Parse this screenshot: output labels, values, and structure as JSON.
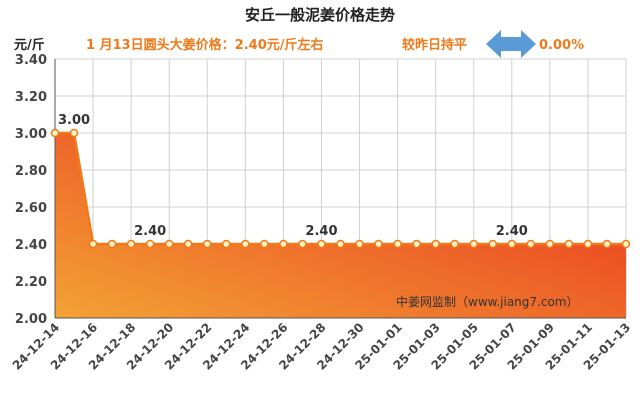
{
  "header": {
    "title": "安丘一般泥姜价格走势",
    "unit": "元/斤",
    "price_text": "1 月13日圆头大姜价格：2.40元/斤左右",
    "compare_text": "较昨日持平",
    "change_text": "0.00%"
  },
  "watermark": "中姜网监制（www.jiang7.com）",
  "colors": {
    "line": "#f07a1a",
    "fill_top": "#e82a1c",
    "fill_bottom": "#f3a235",
    "arrow": "#5b9bd5",
    "grid": "#d0d0d0",
    "marker_fill": "#fff3c4"
  },
  "chart_data": {
    "type": "area",
    "title": "安丘一般泥姜价格走势",
    "ylabel": "元/斤",
    "ylim": [
      2.0,
      3.4
    ],
    "yticks": [
      "2.00",
      "2.20",
      "2.40",
      "2.60",
      "2.80",
      "3.00",
      "3.20",
      "3.40"
    ],
    "x": [
      "24-12-14",
      "24-12-15",
      "24-12-16",
      "24-12-17",
      "24-12-18",
      "24-12-19",
      "24-12-20",
      "24-12-21",
      "24-12-22",
      "24-12-23",
      "24-12-24",
      "24-12-25",
      "24-12-26",
      "24-12-27",
      "24-12-28",
      "24-12-29",
      "24-12-30",
      "24-12-31",
      "25-01-01",
      "25-01-02",
      "25-01-03",
      "25-01-04",
      "25-01-05",
      "25-01-06",
      "25-01-07",
      "25-01-08",
      "25-01-09",
      "25-01-10",
      "25-01-11",
      "25-01-12",
      "25-01-13"
    ],
    "xtick_labels": [
      "24-12-14",
      "24-12-16",
      "24-12-18",
      "24-12-20",
      "24-12-22",
      "24-12-24",
      "24-12-26",
      "24-12-28",
      "24-12-30",
      "25-01-01",
      "25-01-03",
      "25-01-05",
      "25-01-07",
      "25-01-09",
      "25-01-11",
      "25-01-13"
    ],
    "series": [
      {
        "values": [
          3.0,
          3.0,
          2.4,
          2.4,
          2.4,
          2.4,
          2.4,
          2.4,
          2.4,
          2.4,
          2.4,
          2.4,
          2.4,
          2.4,
          2.4,
          2.4,
          2.4,
          2.4,
          2.4,
          2.4,
          2.4,
          2.4,
          2.4,
          2.4,
          2.4,
          2.4,
          2.4,
          2.4,
          2.4,
          2.4,
          2.4
        ]
      }
    ],
    "data_labels": [
      {
        "x": "24-12-15",
        "value": 3.0,
        "text": "3.00"
      },
      {
        "x": "24-12-19",
        "value": 2.4,
        "text": "2.40"
      },
      {
        "x": "24-12-28",
        "value": 2.4,
        "text": "2.40"
      },
      {
        "x": "25-01-07",
        "value": 2.4,
        "text": "2.40"
      }
    ],
    "grid": true
  }
}
